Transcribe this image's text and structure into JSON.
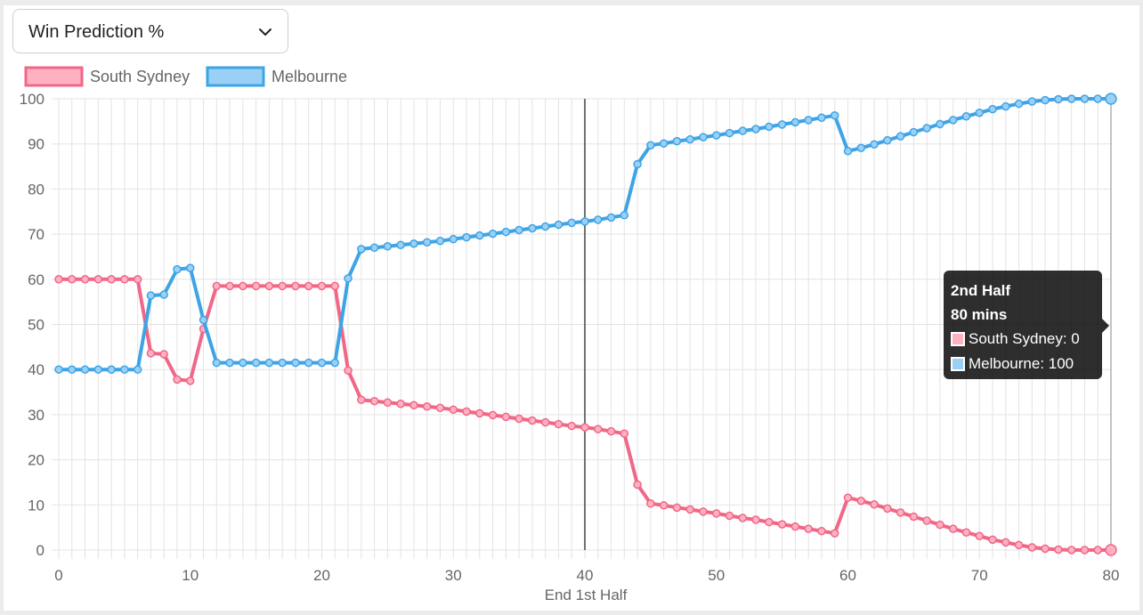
{
  "dropdown": {
    "selected": "Win Prediction %",
    "icon": "chevron-down-icon"
  },
  "colors": {
    "south_sydney_line": "#f06787",
    "south_sydney_fill": "#ffb1c1",
    "melbourne_line": "#3ea4e6",
    "melbourne_fill": "#9ad0f5",
    "grid": "#e3e3e3",
    "current_line": "#444444"
  },
  "tooltip": {
    "title_line1": "2nd Half",
    "title_line2": "80 mins",
    "south_sydney_text": "South Sydney: 0",
    "melbourne_text": "Melbourne: 100"
  },
  "chart_data": {
    "type": "line",
    "title": "",
    "xlabel": "End 1st Half",
    "ylabel": "",
    "xlim": [
      0,
      80
    ],
    "ylim": [
      0,
      100
    ],
    "x_ticks": [
      "0",
      "10",
      "20",
      "30",
      "40",
      "50",
      "60",
      "70",
      "80"
    ],
    "y_ticks": [
      "0",
      "10",
      "20",
      "30",
      "40",
      "50",
      "60",
      "70",
      "80",
      "90",
      "100"
    ],
    "grid": true,
    "legend_position": "top-left",
    "marker_line_x": 40,
    "x": [
      0,
      1,
      2,
      3,
      4,
      5,
      6,
      7,
      8,
      9,
      10,
      11,
      12,
      13,
      14,
      15,
      16,
      17,
      18,
      19,
      20,
      21,
      22,
      23,
      24,
      25,
      26,
      27,
      28,
      29,
      30,
      31,
      32,
      33,
      34,
      35,
      36,
      37,
      38,
      39,
      40,
      41,
      42,
      43,
      44,
      45,
      46,
      47,
      48,
      49,
      50,
      51,
      52,
      53,
      54,
      55,
      56,
      57,
      58,
      59,
      60,
      61,
      62,
      63,
      64,
      65,
      66,
      67,
      68,
      69,
      70,
      71,
      72,
      73,
      74,
      75,
      76,
      77,
      78,
      79,
      80
    ],
    "series": [
      {
        "name": "South Sydney",
        "values": [
          60,
          60,
          60,
          60,
          60,
          60,
          60,
          43.6,
          43.4,
          37.8,
          37.5,
          49,
          58.5,
          58.5,
          58.5,
          58.5,
          58.5,
          58.5,
          58.5,
          58.5,
          58.5,
          58.5,
          39.8,
          33.3,
          33,
          32.7,
          32.4,
          32.1,
          31.8,
          31.5,
          31.1,
          30.7,
          30.3,
          29.9,
          29.5,
          29.1,
          28.7,
          28.3,
          27.9,
          27.5,
          27.2,
          26.8,
          26.3,
          25.8,
          14.5,
          10.3,
          9.9,
          9.4,
          9,
          8.5,
          8.1,
          7.6,
          7.1,
          6.7,
          6.2,
          5.7,
          5.2,
          4.7,
          4.2,
          3.7,
          11.6,
          10.9,
          10.1,
          9.2,
          8.3,
          7.4,
          6.5,
          5.6,
          4.7,
          3.9,
          3.1,
          2.3,
          1.7,
          1.1,
          0.6,
          0.3,
          0.1,
          0,
          0,
          0,
          0
        ]
      },
      {
        "name": "Melbourne",
        "values": [
          40,
          40,
          40,
          40,
          40,
          40,
          40,
          56.4,
          56.6,
          62.2,
          62.5,
          51,
          41.5,
          41.5,
          41.5,
          41.5,
          41.5,
          41.5,
          41.5,
          41.5,
          41.5,
          41.5,
          60.2,
          66.7,
          67,
          67.3,
          67.6,
          67.9,
          68.2,
          68.5,
          68.9,
          69.3,
          69.7,
          70.1,
          70.5,
          70.9,
          71.3,
          71.7,
          72.1,
          72.5,
          72.8,
          73.2,
          73.7,
          74.2,
          85.5,
          89.7,
          90.1,
          90.6,
          91,
          91.5,
          91.9,
          92.4,
          92.9,
          93.3,
          93.8,
          94.3,
          94.8,
          95.3,
          95.8,
          96.3,
          88.4,
          89.1,
          89.9,
          90.8,
          91.7,
          92.6,
          93.5,
          94.4,
          95.3,
          96.1,
          96.9,
          97.7,
          98.3,
          98.9,
          99.4,
          99.7,
          99.9,
          100,
          100,
          100,
          100
        ]
      }
    ]
  }
}
